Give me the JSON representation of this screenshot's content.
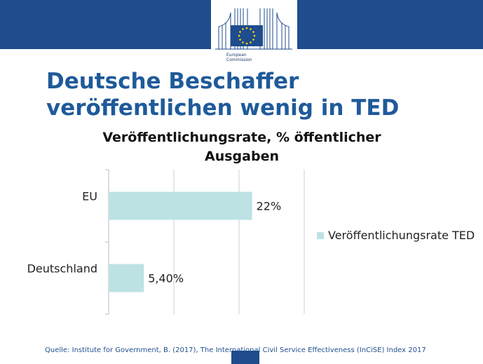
{
  "header": {
    "logo_lines": [
      "European",
      "Commission"
    ],
    "brand_color": "#1e4c8d"
  },
  "slide": {
    "title_lines": [
      "Deutsche Beschaffer",
      "veröffentlichen wenig in TED"
    ],
    "source": "Quelle: Institute for Government, B. (2017), The International Civil Service Effectiveness (InCiSE) Index 2017"
  },
  "chart_data": {
    "type": "bar",
    "orientation": "horizontal",
    "title": "Veröffentlichungsrate, % öffentlicher Ausgaben",
    "categories": [
      "EU",
      "Deutschland"
    ],
    "series": [
      {
        "name": "Veröffentlichungsrate TED",
        "values": [
          22,
          5.4
        ],
        "labels": [
          "22%",
          "5,40%"
        ],
        "color": "#bde2e4"
      }
    ],
    "xlim": [
      0,
      30
    ],
    "grid": true,
    "legend": "right"
  }
}
